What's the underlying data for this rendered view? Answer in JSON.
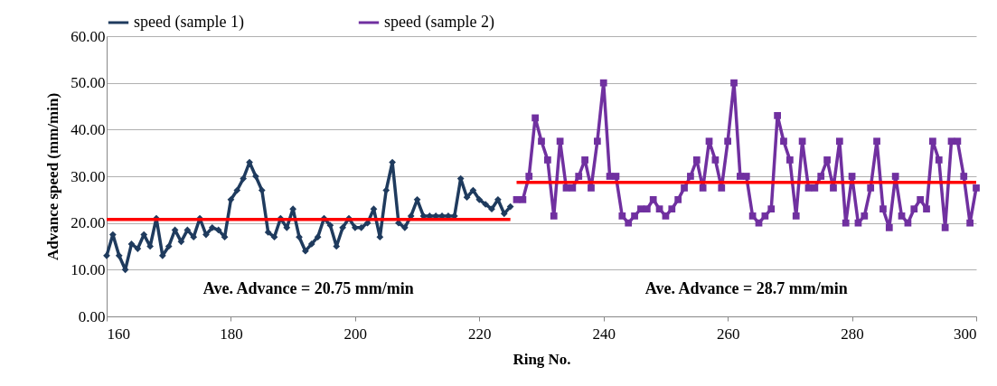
{
  "chart_data": {
    "type": "line",
    "xlabel": "Ring No.",
    "ylabel": "Advance speed (mm/min)",
    "xlim": [
      160,
      300
    ],
    "xticks": [
      160,
      180,
      200,
      220,
      240,
      260,
      280,
      300
    ],
    "ylim": [
      0,
      60
    ],
    "yticks": [
      {
        "value": 0,
        "label": "0.00"
      },
      {
        "value": 10,
        "label": "10.00"
      },
      {
        "value": 20,
        "label": "20.00"
      },
      {
        "value": 30,
        "label": "30.00"
      },
      {
        "value": 40,
        "label": "40.00"
      },
      {
        "value": 50,
        "label": "50.00"
      },
      {
        "value": 60,
        "label": "60.00"
      }
    ],
    "grid": "y",
    "legend": "top",
    "series": [
      {
        "name": "speed (sample 1)",
        "color": "#1f3b5e",
        "marker": "diamond",
        "x": [
          160,
          161,
          162,
          163,
          164,
          165,
          166,
          167,
          168,
          169,
          170,
          171,
          172,
          173,
          174,
          175,
          176,
          177,
          178,
          179,
          180,
          181,
          182,
          183,
          184,
          185,
          186,
          187,
          188,
          189,
          190,
          191,
          192,
          193,
          194,
          195,
          196,
          197,
          198,
          199,
          200,
          201,
          202,
          203,
          204,
          205,
          206,
          207,
          208,
          209,
          210,
          211,
          212,
          213,
          214,
          215,
          216,
          217,
          218,
          219,
          220,
          221,
          222,
          223,
          224,
          225
        ],
        "values": [
          13,
          17.5,
          13,
          10,
          15.5,
          14.5,
          17.5,
          15,
          21,
          13,
          15,
          18.5,
          16,
          18.5,
          17,
          21,
          17.5,
          19,
          18.5,
          17,
          25,
          27,
          29.5,
          33,
          30,
          27,
          18,
          17,
          21,
          19,
          23,
          17,
          14,
          15.5,
          17,
          21,
          19.5,
          15,
          19,
          21,
          19,
          19,
          20,
          23,
          17,
          27,
          33,
          20,
          19,
          21.5,
          25,
          21.5,
          21.5,
          21.5,
          21.5,
          21.5,
          21.5,
          29.5,
          25.5,
          27,
          25,
          24,
          23,
          25,
          22,
          23.5
        ]
      },
      {
        "name": "speed (sample 2)",
        "color": "#7030a0",
        "marker": "square",
        "x": [
          226,
          227,
          228,
          229,
          230,
          231,
          232,
          233,
          234,
          235,
          236,
          237,
          238,
          239,
          240,
          241,
          242,
          243,
          244,
          245,
          246,
          247,
          248,
          249,
          250,
          251,
          252,
          253,
          254,
          255,
          256,
          257,
          258,
          259,
          260,
          261,
          262,
          263,
          264,
          265,
          266,
          267,
          268,
          269,
          270,
          271,
          272,
          273,
          274,
          275,
          276,
          277,
          278,
          279,
          280,
          281,
          282,
          283,
          284,
          285,
          286,
          287,
          288,
          289,
          290,
          291,
          292,
          293,
          294,
          295,
          296,
          297,
          298,
          299,
          300
        ],
        "values": [
          25,
          25,
          30,
          42.5,
          37.5,
          33.5,
          21.5,
          37.5,
          27.5,
          27.5,
          30,
          33.5,
          27.5,
          37.5,
          50,
          30,
          30,
          21.5,
          20,
          21.5,
          23,
          23,
          25,
          23,
          21.5,
          23,
          25,
          27.5,
          30,
          33.5,
          27.5,
          37.5,
          33.5,
          27.5,
          37.5,
          50,
          30,
          30,
          21.5,
          20,
          21.5,
          23,
          43,
          37.5,
          33.5,
          21.5,
          37.5,
          27.5,
          27.5,
          30,
          33.5,
          27.5,
          37.5,
          20,
          30,
          20,
          21.5,
          27.5,
          37.5,
          23,
          19,
          30,
          21.5,
          20,
          23,
          25,
          23,
          37.5,
          33.5,
          19,
          37.5,
          37.5,
          30,
          20,
          27.5
        ]
      },
      {
        "type": "line",
        "color": "#ff0000",
        "marker": "none",
        "x": [
          160,
          225
        ],
        "values": [
          20.75,
          20.75
        ]
      },
      {
        "type": "line",
        "color": "#ff0000",
        "marker": "none",
        "x": [
          226,
          300
        ],
        "values": [
          28.7,
          28.7
        ]
      }
    ],
    "annotations": [
      "Ave. Advance = 20.75 mm/min",
      "Ave. Advance = 28.7 mm/min"
    ]
  }
}
